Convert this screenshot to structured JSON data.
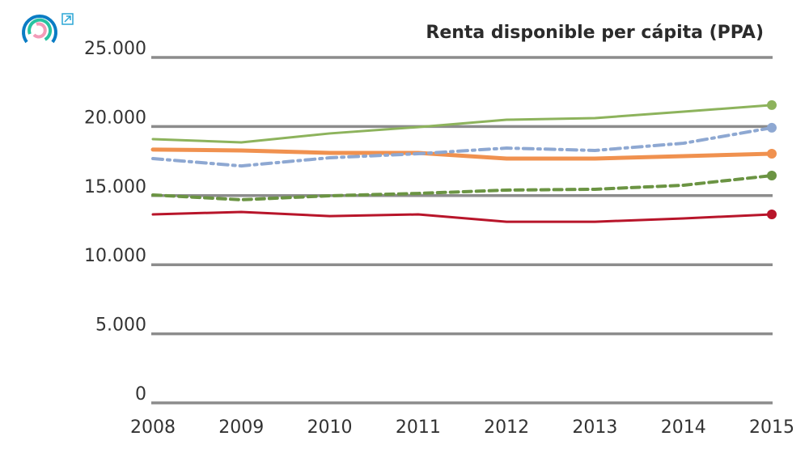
{
  "chart_data": {
    "type": "line",
    "title": "Renta disponible per cápita (PPA)",
    "xlabel": "",
    "ylabel": "",
    "x": [
      2008,
      2009,
      2010,
      2011,
      2012,
      2013,
      2014,
      2015
    ],
    "ylim": [
      0,
      25000
    ],
    "yticks": [
      "0",
      "5.000",
      "10.000",
      "15.000",
      "20.000",
      "25.000"
    ],
    "ytick_values": [
      0,
      5000,
      10000,
      15000,
      20000,
      25000
    ],
    "xticks": [
      "2008",
      "2009",
      "2010",
      "2011",
      "2012",
      "2013",
      "2014",
      "2015"
    ],
    "grid": "horizontal",
    "legend": "none",
    "series": [
      {
        "color": "#8db35c",
        "style": "solid",
        "width": 3,
        "values": [
          19090,
          18850,
          19500,
          19960,
          20490,
          20610,
          21080,
          21550
        ]
      },
      {
        "color": "#f0914f",
        "style": "solid",
        "width": 5,
        "values": [
          18330,
          18270,
          18090,
          18090,
          17680,
          17680,
          17860,
          18030
        ]
      },
      {
        "color": "#8ea8d2",
        "style": "dashdot",
        "width": 4,
        "values": [
          17680,
          17150,
          17740,
          18030,
          18440,
          18270,
          18790,
          19910
        ]
      },
      {
        "color": "#6b9443",
        "style": "dashed",
        "width": 4,
        "values": [
          15050,
          14700,
          14990,
          15160,
          15400,
          15460,
          15750,
          16450
        ]
      },
      {
        "color": "#b8152a",
        "style": "solid",
        "width": 3,
        "values": [
          13640,
          13820,
          13520,
          13640,
          13110,
          13110,
          13350,
          13640
        ]
      }
    ]
  },
  "logo": {
    "icon": "circular-rings-logo",
    "colors": [
      "#0a7cc4",
      "#27c3a0",
      "#f39bb8"
    ]
  },
  "external_link": {
    "icon": "external-link-icon",
    "color": "#2aa6d6"
  }
}
